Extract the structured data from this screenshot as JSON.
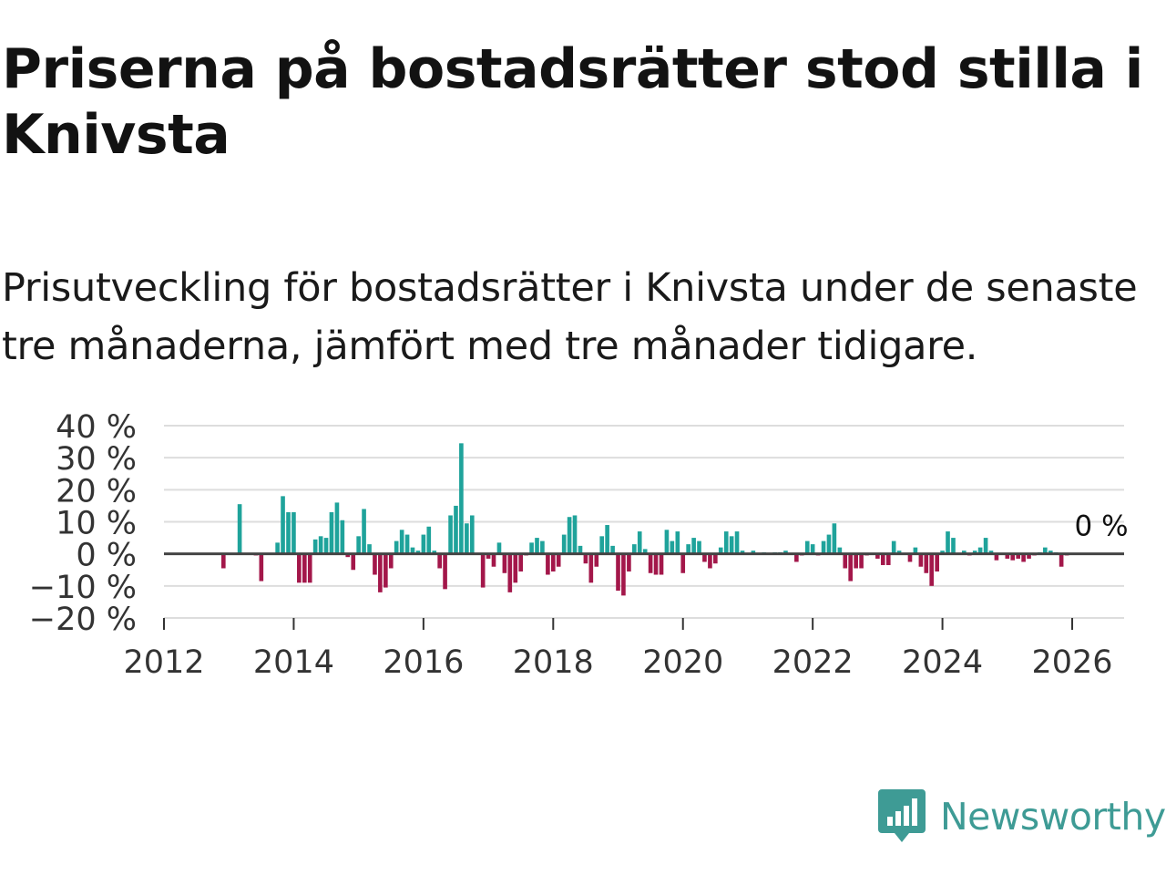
{
  "title": "Priserna på bostadsrätter stod stilla i Knivsta",
  "subtitle": "Prisutveckling för bostadsrätter i Knivsta under de senaste tre månaderna, jämfört med tre månader tidigare.",
  "brand": {
    "name": "Newsworthy",
    "color": "#3e9b95"
  },
  "colors": {
    "positive": "#1fa39b",
    "negative": "#a3174a",
    "grid": "#dddddd",
    "axis": "#333333"
  },
  "chart_data": {
    "type": "bar",
    "title": "",
    "xlabel": "",
    "ylabel": "",
    "ylim": [
      -20,
      40
    ],
    "xlim": [
      2012,
      2026.8
    ],
    "y_ticks": [
      40,
      30,
      20,
      10,
      0,
      -10,
      -20
    ],
    "y_tick_labels": [
      "40 %",
      "30 %",
      "20 %",
      "10 %",
      "0 %",
      "−10 %",
      "−20 %"
    ],
    "x_ticks": [
      2012,
      2014,
      2016,
      2018,
      2020,
      2022,
      2024,
      2026
    ],
    "x_tick_labels": [
      "2012",
      "2014",
      "2016",
      "2018",
      "2020",
      "2022",
      "2024",
      "2026"
    ],
    "grid": true,
    "last_value_label": "0 %",
    "x": [
      2012.917,
      2013.167,
      2013.417,
      2013.5,
      2013.75,
      2013.833,
      2013.917,
      2014.0,
      2014.083,
      2014.167,
      2014.25,
      2014.333,
      2014.417,
      2014.5,
      2014.583,
      2014.667,
      2014.75,
      2014.833,
      2014.917,
      2015.0,
      2015.083,
      2015.167,
      2015.25,
      2015.333,
      2015.417,
      2015.5,
      2015.583,
      2015.667,
      2015.75,
      2015.833,
      2015.917,
      2016.0,
      2016.083,
      2016.167,
      2016.25,
      2016.333,
      2016.417,
      2016.5,
      2016.583,
      2016.667,
      2016.75,
      2016.917,
      2017.0,
      2017.083,
      2017.167,
      2017.25,
      2017.333,
      2017.417,
      2017.5,
      2017.583,
      2017.667,
      2017.75,
      2017.833,
      2017.917,
      2018.0,
      2018.083,
      2018.167,
      2018.25,
      2018.333,
      2018.417,
      2018.5,
      2018.583,
      2018.667,
      2018.75,
      2018.833,
      2018.917,
      2019.0,
      2019.083,
      2019.167,
      2019.25,
      2019.333,
      2019.417,
      2019.5,
      2019.583,
      2019.667,
      2019.75,
      2019.833,
      2019.917,
      2020.0,
      2020.083,
      2020.167,
      2020.25,
      2020.333,
      2020.417,
      2020.5,
      2020.583,
      2020.667,
      2020.75,
      2020.833,
      2020.917,
      2021.083,
      2021.25,
      2021.417,
      2021.5,
      2021.583,
      2021.75,
      2021.833,
      2021.917,
      2022.0,
      2022.083,
      2022.167,
      2022.25,
      2022.333,
      2022.417,
      2022.5,
      2022.583,
      2022.667,
      2022.75,
      2022.833,
      2023.0,
      2023.083,
      2023.167,
      2023.25,
      2023.333,
      2023.5,
      2023.583,
      2023.667,
      2023.75,
      2023.833,
      2023.917,
      2024.0,
      2024.083,
      2024.167,
      2024.333,
      2024.417,
      2024.5,
      2024.583,
      2024.667,
      2024.75,
      2024.833,
      2025.0,
      2025.083,
      2025.167,
      2025.25,
      2025.333,
      2025.417,
      2025.5,
      2025.583,
      2025.667,
      2025.75,
      2025.833,
      2025.917,
      2026.0
    ],
    "values": [
      -4.5,
      15.5,
      -0.5,
      -8.5,
      3.5,
      18.0,
      13.0,
      13.0,
      -9.0,
      -9.0,
      -9.0,
      4.5,
      5.5,
      5.0,
      13.0,
      16.0,
      10.5,
      -1.0,
      -5.0,
      5.5,
      14.0,
      3.0,
      -6.5,
      -12.0,
      -10.5,
      -4.5,
      4.0,
      7.5,
      6.0,
      2.0,
      1.0,
      6.0,
      8.5,
      1.0,
      -4.5,
      -11.0,
      12.0,
      15.0,
      34.5,
      9.5,
      12.0,
      -10.5,
      -1.5,
      -4.0,
      3.5,
      -6.0,
      -12.0,
      -9.0,
      -5.5,
      -0.5,
      3.5,
      5.0,
      4.0,
      -6.5,
      -5.5,
      -4.0,
      6.0,
      11.5,
      12.0,
      2.5,
      -3.0,
      -9.0,
      -4.0,
      5.5,
      9.0,
      2.5,
      -11.5,
      -13.0,
      -5.5,
      3.0,
      7.0,
      1.5,
      -6.0,
      -6.5,
      -6.5,
      7.5,
      4.0,
      7.0,
      -6.0,
      3.0,
      5.0,
      4.0,
      -2.5,
      -4.5,
      -3.0,
      2.0,
      7.0,
      5.5,
      7.0,
      1.0,
      1.0,
      0.5,
      0.5,
      0.5,
      1.0,
      -2.5,
      -0.5,
      4.0,
      3.0,
      -0.5,
      4.0,
      6.0,
      9.5,
      2.0,
      -4.5,
      -8.5,
      -4.5,
      -4.5,
      -0.5,
      -1.5,
      -3.5,
      -3.5,
      4.0,
      1.0,
      -2.5,
      2.0,
      -4.0,
      -6.0,
      -10.0,
      -5.5,
      1.0,
      7.0,
      5.0,
      1.0,
      -0.5,
      1.0,
      2.0,
      5.0,
      1.0,
      -2.0,
      -1.5,
      -2.0,
      -1.5,
      -2.5,
      -1.5,
      -0.5,
      0.5,
      2.0,
      1.0,
      0.5,
      -4.0,
      -0.5,
      0.0
    ]
  }
}
